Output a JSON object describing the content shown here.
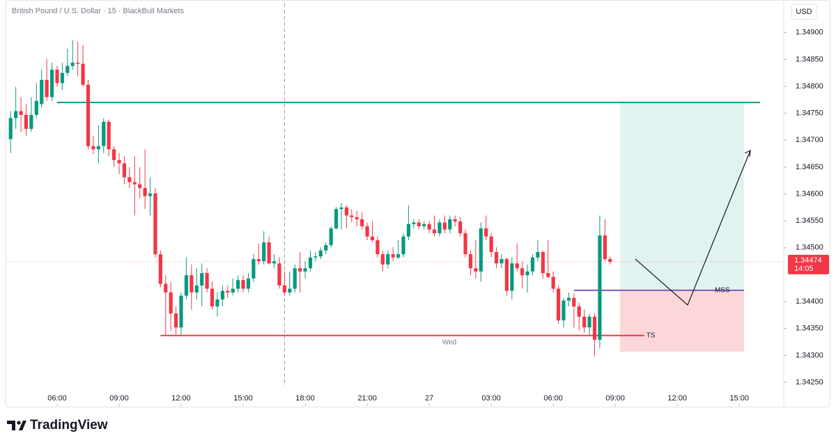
{
  "chart_data": {
    "type": "candlestick",
    "title": "British Pound / U.S. Dollar · 15 · BlackBull Markets",
    "currency": "USD",
    "up_color": "#089981",
    "down_color": "#f23645",
    "x": [
      3.75,
      4,
      4.25,
      4.5,
      4.75,
      5,
      5.25,
      5.5,
      5.75,
      6,
      6.25,
      6.5,
      6.75,
      7,
      7.25,
      7.5,
      7.75,
      8,
      8.25,
      8.5,
      8.75,
      9,
      9.25,
      9.5,
      9.75,
      10,
      10.25,
      10.5,
      10.75,
      11,
      11.25,
      11.5,
      11.75,
      12,
      12.25,
      12.5,
      12.75,
      13,
      13.25,
      13.5,
      13.75,
      14,
      14.25,
      14.5,
      14.75,
      15,
      15.25,
      15.5,
      15.75,
      16,
      16.25,
      16.5,
      16.75,
      17,
      17.25,
      17.5,
      17.75,
      18,
      18.25,
      18.5,
      18.75,
      19,
      19.25,
      19.5,
      19.75,
      20,
      20.25,
      20.5,
      20.75,
      21,
      21.25,
      21.5,
      21.75,
      22,
      22.25,
      22.5,
      22.75,
      23,
      23.25,
      23.5,
      23.75,
      24,
      24.25,
      24.5,
      24.75,
      25,
      25.25,
      25.5,
      25.75,
      26,
      26.25,
      26.5,
      26.75,
      27,
      27.25,
      27.5,
      27.75,
      28,
      28.25,
      28.5,
      28.75,
      29,
      29.25,
      29.5,
      29.75,
      30,
      30.25,
      30.5,
      30.75,
      31,
      31.25,
      31.5,
      31.75,
      32,
      32.25,
      32.5,
      32.75
    ],
    "open": [
      1.34702,
      1.34741,
      1.34754,
      1.34747,
      1.34721,
      1.34747,
      1.34767,
      1.34812,
      1.3478,
      1.34831,
      1.34806,
      1.34825,
      1.34838,
      1.34844,
      1.34842,
      1.34803,
      1.34689,
      1.34683,
      1.34689,
      1.34734,
      1.34683,
      1.34663,
      1.34657,
      1.34631,
      1.34622,
      1.34618,
      1.34611,
      1.34596,
      1.34601,
      1.34488,
      1.34433,
      1.34417,
      1.34378,
      1.34352,
      1.34411,
      1.34449,
      1.34417,
      1.3443,
      1.34453,
      1.34424,
      1.34391,
      1.34404,
      1.3442,
      1.34417,
      1.34424,
      1.3444,
      1.34424,
      1.34443,
      1.34479,
      1.34475,
      1.3451,
      1.34471,
      1.34471,
      1.3443,
      1.34417,
      1.34424,
      1.34462,
      1.34456,
      1.34462,
      1.34482,
      1.34484,
      1.34495,
      1.34505,
      1.34536,
      1.34572,
      1.34575,
      1.3456,
      1.34557,
      1.34553,
      1.3454,
      1.34521,
      1.34514,
      1.34488,
      1.34469,
      1.34488,
      1.34482,
      1.34488,
      1.34521,
      1.34544,
      1.34547,
      1.3454,
      1.34544,
      1.34534,
      1.34527,
      1.34547,
      1.34534,
      1.34553,
      1.34549,
      1.34527,
      1.34488,
      1.34462,
      1.34456,
      1.34536,
      1.34521,
      1.34492,
      1.34471,
      1.34479,
      1.3442,
      1.34471,
      1.34462,
      1.34449,
      1.34456,
      1.34482,
      1.34492,
      1.34453,
      1.34446,
      1.34424,
      1.34365,
      1.34402,
      1.34407,
      1.34391,
      1.34372,
      1.34352,
      1.34372,
      1.34329,
      1.34523,
      1.34479
    ],
    "high": [
      1.34754,
      1.34799,
      1.3478,
      1.34767,
      1.3478,
      1.34806,
      1.34831,
      1.34851,
      1.34844,
      1.34838,
      1.34844,
      1.3487,
      1.34886,
      1.34883,
      1.34877,
      1.34812,
      1.34708,
      1.34728,
      1.34741,
      1.34738,
      1.34689,
      1.34676,
      1.3467,
      1.3465,
      1.3467,
      1.3465,
      1.34683,
      1.34631,
      1.34611,
      1.34495,
      1.34449,
      1.34437,
      1.34391,
      1.34417,
      1.34482,
      1.34469,
      1.34462,
      1.34471,
      1.34462,
      1.34437,
      1.34417,
      1.3443,
      1.3443,
      1.34443,
      1.34449,
      1.34449,
      1.34453,
      1.34488,
      1.34508,
      1.34531,
      1.34521,
      1.34488,
      1.34482,
      1.34456,
      1.34456,
      1.34469,
      1.34492,
      1.34475,
      1.34495,
      1.34492,
      1.34501,
      1.3451,
      1.3454,
      1.34576,
      1.34583,
      1.34579,
      1.34572,
      1.34569,
      1.34566,
      1.34547,
      1.34549,
      1.34521,
      1.34495,
      1.34495,
      1.34501,
      1.34514,
      1.34527,
      1.34579,
      1.34553,
      1.34553,
      1.34549,
      1.34549,
      1.3456,
      1.34553,
      1.3456,
      1.3456,
      1.3456,
      1.34557,
      1.34534,
      1.34495,
      1.34514,
      1.34547,
      1.3456,
      1.34527,
      1.34501,
      1.34488,
      1.34482,
      1.34482,
      1.34508,
      1.34475,
      1.34469,
      1.34488,
      1.34514,
      1.34495,
      1.34514,
      1.34456,
      1.3443,
      1.34407,
      1.34417,
      1.34415,
      1.34398,
      1.34385,
      1.34378,
      1.34378,
      1.3456,
      1.34553,
      1.34484
    ],
    "low": [
      1.34676,
      1.34721,
      1.34715,
      1.34708,
      1.34715,
      1.34741,
      1.3476,
      1.34773,
      1.34773,
      1.34799,
      1.34793,
      1.34819,
      1.34831,
      1.34819,
      1.34799,
      1.34683,
      1.34674,
      1.34657,
      1.34676,
      1.3467,
      1.3465,
      1.34637,
      1.34618,
      1.34611,
      1.3456,
      1.34592,
      1.34572,
      1.3456,
      1.34482,
      1.34427,
      1.34339,
      1.34346,
      1.34339,
      1.34339,
      1.34404,
      1.34385,
      1.34404,
      1.34391,
      1.34417,
      1.34385,
      1.34372,
      1.34391,
      1.34407,
      1.34411,
      1.34417,
      1.34417,
      1.34417,
      1.34437,
      1.34469,
      1.34469,
      1.34469,
      1.34462,
      1.34424,
      1.34411,
      1.34411,
      1.34417,
      1.34417,
      1.34443,
      1.34456,
      1.34475,
      1.34479,
      1.34488,
      1.34501,
      1.34534,
      1.34534,
      1.34536,
      1.34547,
      1.3454,
      1.34534,
      1.34514,
      1.3451,
      1.34482,
      1.34456,
      1.34462,
      1.34475,
      1.34479,
      1.34482,
      1.34514,
      1.34536,
      1.34534,
      1.34534,
      1.34527,
      1.34521,
      1.34521,
      1.34527,
      1.34527,
      1.3454,
      1.34521,
      1.34482,
      1.34449,
      1.34443,
      1.34437,
      1.34514,
      1.34482,
      1.34462,
      1.34462,
      1.34411,
      1.34404,
      1.34456,
      1.34424,
      1.34417,
      1.34449,
      1.34475,
      1.34443,
      1.34443,
      1.34417,
      1.34359,
      1.34352,
      1.34391,
      1.34352,
      1.34346,
      1.34342,
      1.34339,
      1.34298,
      1.34313,
      1.34475,
      1.34469
    ],
    "close": [
      1.34741,
      1.34754,
      1.34747,
      1.34721,
      1.34747,
      1.34773,
      1.34812,
      1.3478,
      1.34831,
      1.34806,
      1.34825,
      1.34838,
      1.34844,
      1.34842,
      1.34803,
      1.34689,
      1.34683,
      1.34689,
      1.34734,
      1.34683,
      1.34663,
      1.34657,
      1.34631,
      1.34622,
      1.34618,
      1.34611,
      1.34596,
      1.34601,
      1.34488,
      1.34433,
      1.34417,
      1.34378,
      1.34352,
      1.34411,
      1.34449,
      1.34417,
      1.3443,
      1.34453,
      1.34424,
      1.34391,
      1.34404,
      1.3442,
      1.34417,
      1.34424,
      1.3444,
      1.34424,
      1.34443,
      1.34479,
      1.34475,
      1.3451,
      1.34471,
      1.34475,
      1.3443,
      1.34417,
      1.34424,
      1.34462,
      1.34456,
      1.34462,
      1.34482,
      1.34484,
      1.34495,
      1.34505,
      1.34536,
      1.34572,
      1.34575,
      1.3456,
      1.34557,
      1.34553,
      1.3454,
      1.34521,
      1.34514,
      1.34488,
      1.34469,
      1.34488,
      1.34482,
      1.34488,
      1.34521,
      1.34544,
      1.34547,
      1.3454,
      1.34544,
      1.34534,
      1.34527,
      1.34547,
      1.34534,
      1.34553,
      1.34549,
      1.34527,
      1.34488,
      1.34462,
      1.34456,
      1.34536,
      1.34521,
      1.34492,
      1.34471,
      1.34479,
      1.3442,
      1.34471,
      1.34462,
      1.34449,
      1.34456,
      1.34482,
      1.34492,
      1.34453,
      1.34446,
      1.34424,
      1.34365,
      1.34402,
      1.34407,
      1.34391,
      1.34372,
      1.34352,
      1.34372,
      1.34329,
      1.34523,
      1.34479,
      1.34474
    ],
    "xlim": [
      3.54,
      41.15
    ],
    "xticks": [
      {
        "value": 6,
        "label": "06:00"
      },
      {
        "value": 9,
        "label": "09:00"
      },
      {
        "value": 12,
        "label": "12:00"
      },
      {
        "value": 15,
        "label": "15:00"
      },
      {
        "value": 18,
        "label": "18:00"
      },
      {
        "value": 21,
        "label": "21:00"
      },
      {
        "value": 24,
        "label": "27"
      },
      {
        "value": 27,
        "label": "03:00"
      },
      {
        "value": 30,
        "label": "06:00"
      },
      {
        "value": 33,
        "label": "09:00"
      },
      {
        "value": 36,
        "label": "12:00"
      },
      {
        "value": 39,
        "label": "15:00"
      }
    ],
    "ylim": [
      1.34206,
      1.34954
    ],
    "yticks": [
      {
        "value": 1.3425,
        "label": "1.34250"
      },
      {
        "value": 1.343,
        "label": "1.34300"
      },
      {
        "value": 1.3435,
        "label": "1.34350"
      },
      {
        "value": 1.344,
        "label": "1.34400"
      },
      {
        "value": 1.345,
        "label": "1.34500"
      },
      {
        "value": 1.3455,
        "label": "1.34550"
      },
      {
        "value": 1.346,
        "label": "1.34600"
      },
      {
        "value": 1.3465,
        "label": "1.34650"
      },
      {
        "value": 1.347,
        "label": "1.34700"
      },
      {
        "value": 1.3475,
        "label": "1.34750"
      },
      {
        "value": 1.348,
        "label": "1.34800"
      },
      {
        "value": 1.3485,
        "label": "1.34850"
      },
      {
        "value": 1.349,
        "label": "1.34900"
      }
    ],
    "last_price": {
      "value": 1.34474,
      "label": "1.34474",
      "countdown": "14:05",
      "color": "#f23645"
    },
    "session_break": 17,
    "levels": [
      {
        "value": 1.3477,
        "x": [
          6,
          40
        ],
        "color": "#089981"
      },
      {
        "value": 1.34337,
        "x": [
          11,
          34.4
        ],
        "color": "#f23645",
        "label": "TS"
      },
      {
        "value": 1.34421,
        "x": [
          31,
          39.23
        ],
        "color": "#7e57c2",
        "label": "MSS"
      }
    ],
    "day_label": "Wed",
    "position": {
      "target": 1.3477,
      "entry": 1.34421,
      "stop": 1.34307,
      "x": [
        33.23,
        39.23
      ]
    }
  },
  "branding": "TradingView"
}
